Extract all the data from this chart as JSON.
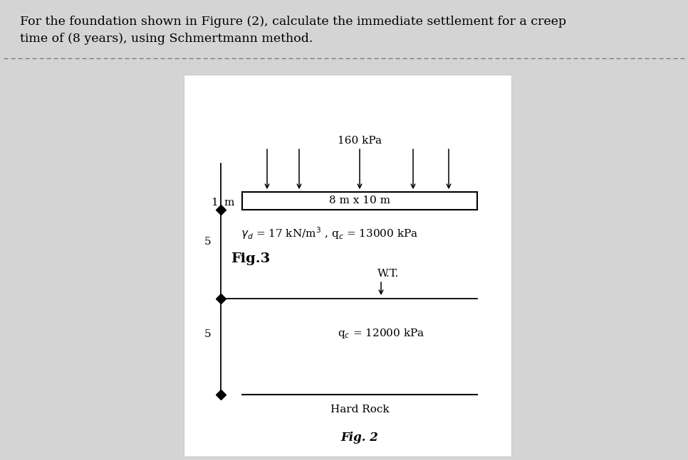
{
  "title_line1": "For the foundation shown in Figure (2), calculate the immediate settlement for a creep",
  "title_line2": "time of (8 years), using Schmertmann method.",
  "background_color": "#d4d4d4",
  "panel_color": "#ffffff",
  "text_color": "#000000",
  "title_fontsize": 12.5,
  "load_label": "160 kPa",
  "foundation_label": "8 m x 10 m",
  "depth1_label": "1",
  "depth1_m": "m",
  "depth2_label": "5",
  "depth3_label": "5",
  "soil1_label": "γ⁤ = 17 kN/m³ , qᶜ = 13000 kPa",
  "fig_label": "Fig.3",
  "wt_label": "W.T.",
  "soil2_label": "qᶜ = 12000 kPa",
  "bottom_label": "Hard Rock",
  "fig2_label": "Fig. 2",
  "sep_line_color": "#777777",
  "panel_border_color": "#cccccc"
}
